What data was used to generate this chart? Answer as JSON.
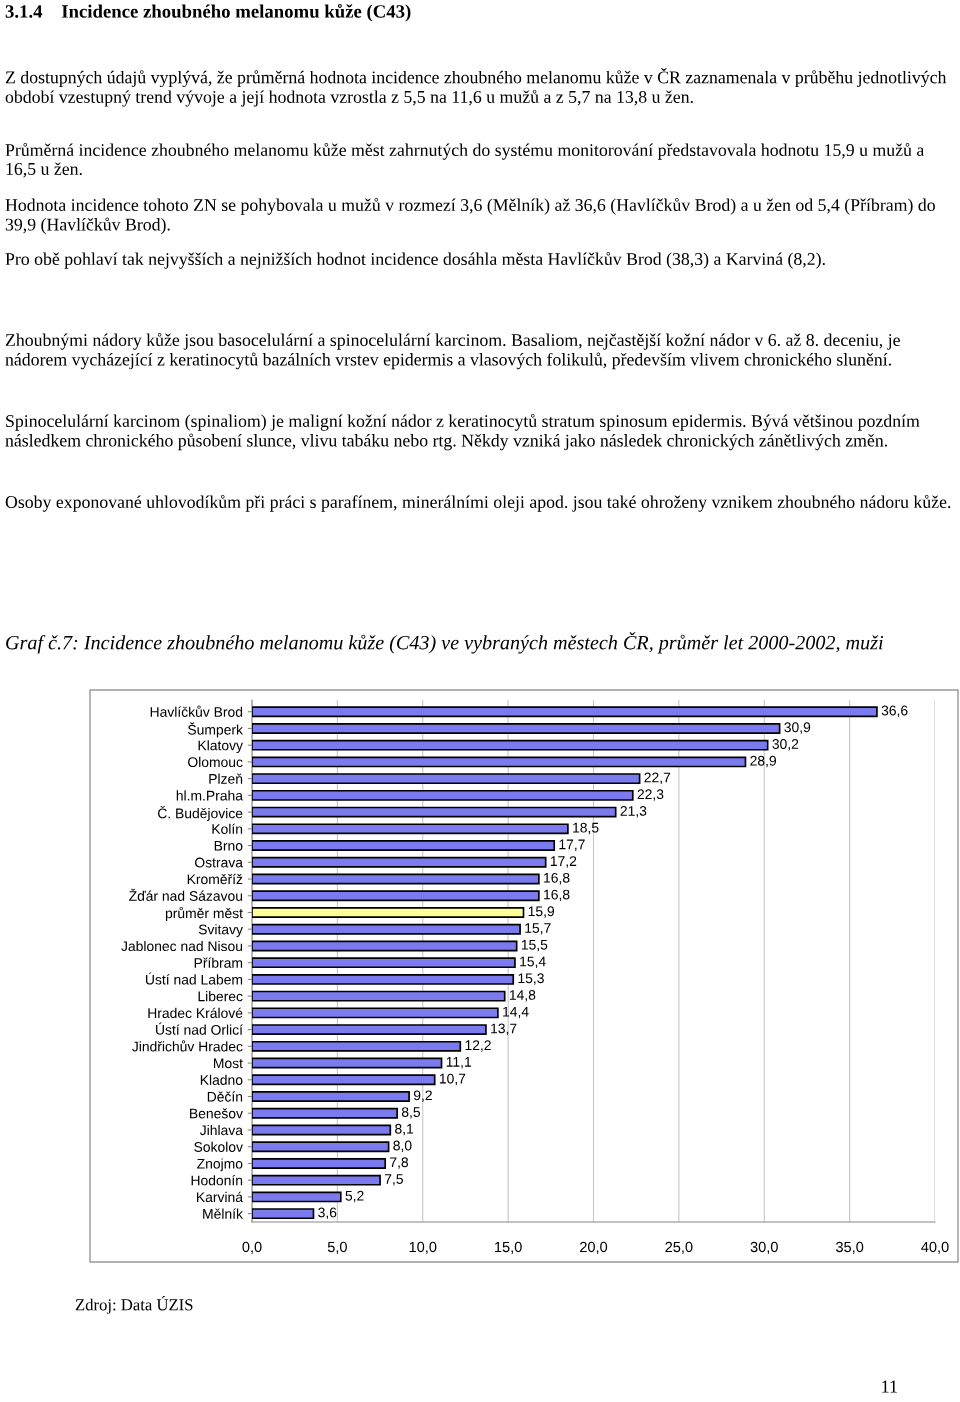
{
  "chart_data": {
    "type": "bar",
    "orientation": "horizontal",
    "title": "3.1.4    Incidence zhoubného melanomu kůže (C43)",
    "subtitle": "Graf č.7: Incidence zhoubného melanomu kůže (C43) ve vybraných městech ČR, průměr let 2000-2002, muži",
    "annotations": [
      "Z dostupných údajů vyplývá, že průměrná hodnota incidence zhoubného melanomu kůže v ČR zaznamenala v průběhu jednotlivých období vzestupný trend vývoje a její hodnota vzrostla z 5,5 na 11,6 u mužů a z 5,7 na 13,8 u žen.",
      "Průměrná incidence zhoubného melanomu kůže měst zahrnutých do systému monitorování představovala hodnotu 15,9 u mužů a 16,5 u žen.",
      "Hodnota incidence tohoto ZN se pohybovala u mužů v rozmezí 3,6 (Mělník) až 36,6 (Havlíčkův Brod) a u žen od 5,4 (Příbram) do 39,9 (Havlíčkův Brod).",
      "Pro obě pohlaví tak nejvyšších a nejnižších hodnot incidence dosáhla města Havlíčkův Brod (38,3) a Karviná (8,2).",
      "Zhoubnými nádory kůže jsou basocelulární a spinocelulární karcinom. Basaliom, nejčastější kožní nádor v 6. až 8. deceniu, je nádorem vycházející z keratinocytů bazálních vrstev epidermis a vlasových folikulů, především vlivem chronického slunění.",
      "Spinocelulární karcinom (spinaliom) je maligní kožní nádor z keratinocytů stratum spinosum epidermis. Bývá většinou pozdním následkem chronického působení slunce, vlivu tabáku nebo rtg. Někdy vzniká jako následek chronických zánětlivých změn.",
      "Osoby exponované uhlovodíkům při práci s parafínem, minerálními oleji apod. jsou také ohroženy vznikem zhoubného nádoru kůže.",
      "Zdroj: Data ÚZIS",
      "11"
    ],
    "categories": [
      "Havlíčkův Brod",
      "Šumperk",
      "Klatovy",
      "Olomouc",
      "Plzeň",
      "hl.m.Praha",
      "Č. Budějovice",
      "Kolín",
      "Brno",
      "Ostrava",
      "Kroměříž",
      "Žďár nad Sázavou",
      "průměr měst",
      "Svitavy",
      "Jablonec nad Nisou",
      "Příbram",
      "Ústí nad Labem",
      "Liberec",
      "Hradec Králové",
      "Ústí nad Orlicí",
      "Jindřichův Hradec",
      "Most",
      "Kladno",
      "Děčín",
      "Benešov",
      "Jihlava",
      "Sokolov",
      "Znojmo",
      "Hodonín",
      "Karviná",
      "Mělník"
    ],
    "values": [
      36.6,
      30.9,
      30.2,
      28.9,
      22.7,
      22.3,
      21.3,
      18.5,
      17.7,
      17.2,
      16.8,
      16.8,
      15.9,
      15.7,
      15.5,
      15.4,
      15.3,
      14.8,
      14.4,
      13.7,
      12.2,
      11.1,
      10.7,
      9.2,
      8.5,
      8.1,
      8.0,
      7.8,
      7.5,
      5.2,
      3.6
    ],
    "value_labels": [
      "36,6",
      "30,9",
      "30,2",
      "28,9",
      "22,7",
      "22,3",
      "21,3",
      "18,5",
      "17,7",
      "17,2",
      "16,8",
      "16,8",
      "15,9",
      "15,7",
      "15,5",
      "15,4",
      "15,3",
      "14,8",
      "14,4",
      "13,7",
      "12,2",
      "11,1",
      "10,7",
      "9,2",
      "8,5",
      "8,1",
      "8,0",
      "7,8",
      "7,5",
      "5,2",
      "3,6"
    ],
    "colors": [
      "#7b7bef",
      "#7b7bef",
      "#7b7bef",
      "#7b7bef",
      "#7b7bef",
      "#7b7bef",
      "#7b7bef",
      "#7b7bef",
      "#7b7bef",
      "#7b7bef",
      "#7b7bef",
      "#7b7bef",
      "#ffff99",
      "#7b7bef",
      "#7b7bef",
      "#7b7bef",
      "#7b7bef",
      "#7b7bef",
      "#7b7bef",
      "#7b7bef",
      "#7b7bef",
      "#7b7bef",
      "#7b7bef",
      "#7b7bef",
      "#7b7bef",
      "#7b7bef",
      "#7b7bef",
      "#7b7bef",
      "#7b7bef",
      "#7b7bef",
      "#7b7bef"
    ],
    "xlim": [
      0,
      40
    ],
    "xticks": [
      {
        "value": 0,
        "label": "0,0"
      },
      {
        "value": 5,
        "label": "5,0"
      },
      {
        "value": 10,
        "label": "10,0"
      },
      {
        "value": 15,
        "label": "15,0"
      },
      {
        "value": 20,
        "label": "20,0"
      },
      {
        "value": 25,
        "label": "25,0"
      },
      {
        "value": 30,
        "label": "30,0"
      },
      {
        "value": 35,
        "label": "35,0"
      },
      {
        "value": 40,
        "label": "40,0"
      }
    ],
    "grid": "x",
    "legend": false
  }
}
